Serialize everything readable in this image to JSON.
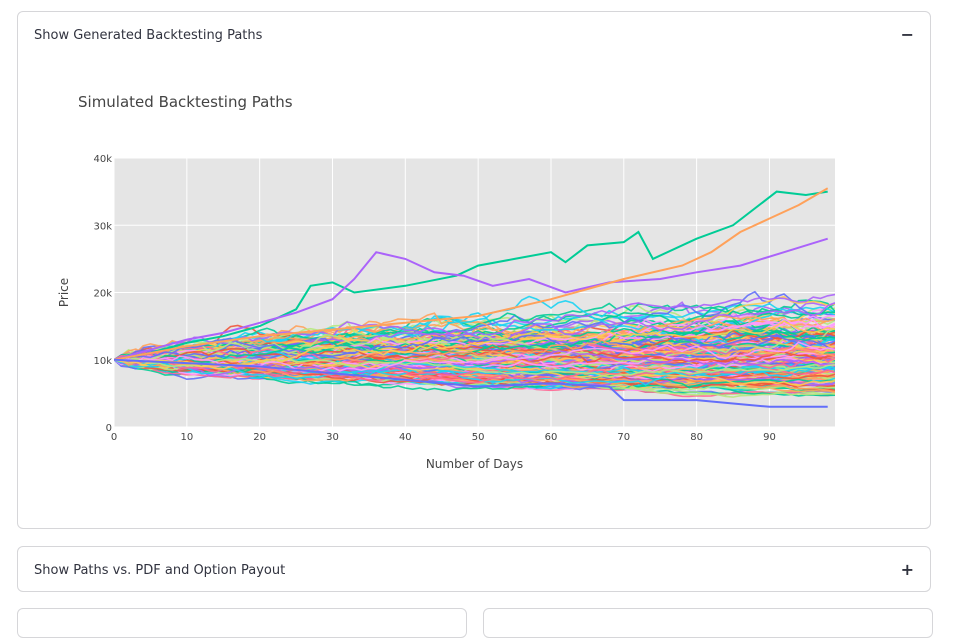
{
  "expanders": [
    {
      "label": "Show Generated Backtesting Paths",
      "toggle": "−",
      "expanded": true
    },
    {
      "label": "Show Paths vs. PDF and Option Payout",
      "toggle": "+",
      "expanded": false
    }
  ],
  "chart_data": {
    "type": "line",
    "title": "Simulated Backtesting Paths",
    "xlabel": "Number of Days",
    "ylabel": "Price",
    "xlim": [
      0,
      99
    ],
    "ylim": [
      0,
      40000
    ],
    "x_ticks": [
      0,
      10,
      20,
      30,
      40,
      50,
      60,
      70,
      80,
      90
    ],
    "y_ticks": [
      0,
      10000,
      20000,
      30000,
      40000
    ],
    "y_tick_labels": [
      "0",
      "10k",
      "20k",
      "30k",
      "40k"
    ],
    "start_value": 10000,
    "num_days": 100,
    "num_paths": 300,
    "grid": true,
    "background": "#e5e5e5",
    "colors": [
      "#636efa",
      "#ef553b",
      "#00cc96",
      "#ab63fa",
      "#ffa15a",
      "#19d3f3",
      "#ff6692",
      "#b6e880",
      "#ff97ff",
      "#fecb52"
    ],
    "highlight_paths": [
      {
        "color": "#00cc96",
        "points": [
          [
            0,
            10000
          ],
          [
            5,
            11000
          ],
          [
            10,
            12500
          ],
          [
            15,
            13500
          ],
          [
            20,
            15000
          ],
          [
            25,
            17500
          ],
          [
            27,
            21000
          ],
          [
            30,
            21500
          ],
          [
            33,
            20000
          ],
          [
            40,
            21000
          ],
          [
            47,
            22500
          ],
          [
            50,
            24000
          ],
          [
            55,
            25000
          ],
          [
            60,
            26000
          ],
          [
            62,
            24500
          ],
          [
            65,
            27000
          ],
          [
            70,
            27500
          ],
          [
            72,
            29000
          ],
          [
            74,
            25000
          ],
          [
            80,
            28000
          ],
          [
            85,
            30000
          ],
          [
            91,
            35000
          ],
          [
            95,
            34500
          ],
          [
            98,
            35000
          ]
        ]
      },
      {
        "color": "#ab63fa",
        "points": [
          [
            0,
            10000
          ],
          [
            5,
            11500
          ],
          [
            10,
            13000
          ],
          [
            15,
            14000
          ],
          [
            20,
            15500
          ],
          [
            25,
            17000
          ],
          [
            30,
            19000
          ],
          [
            33,
            22000
          ],
          [
            36,
            26000
          ],
          [
            40,
            25000
          ],
          [
            44,
            23000
          ],
          [
            48,
            22500
          ],
          [
            52,
            21000
          ],
          [
            57,
            22000
          ],
          [
            62,
            20000
          ],
          [
            68,
            21500
          ],
          [
            75,
            22000
          ],
          [
            80,
            23000
          ],
          [
            86,
            24000
          ],
          [
            92,
            26000
          ],
          [
            98,
            28000
          ]
        ]
      },
      {
        "color": "#ffa15a",
        "points": [
          [
            0,
            10000
          ],
          [
            10,
            12000
          ],
          [
            20,
            13500
          ],
          [
            30,
            14500
          ],
          [
            40,
            15500
          ],
          [
            50,
            16500
          ],
          [
            60,
            19000
          ],
          [
            70,
            22000
          ],
          [
            78,
            24000
          ],
          [
            82,
            26000
          ],
          [
            86,
            29000
          ],
          [
            90,
            31000
          ],
          [
            94,
            33000
          ],
          [
            98,
            35500
          ]
        ]
      },
      {
        "color": "#636efa",
        "points": [
          [
            0,
            10000
          ],
          [
            10,
            9500
          ],
          [
            20,
            9000
          ],
          [
            30,
            8000
          ],
          [
            40,
            7000
          ],
          [
            50,
            6000
          ],
          [
            60,
            6500
          ],
          [
            68,
            6000
          ],
          [
            70,
            4000
          ],
          [
            80,
            4000
          ],
          [
            85,
            3500
          ],
          [
            90,
            3000
          ],
          [
            98,
            3000
          ]
        ]
      }
    ]
  }
}
